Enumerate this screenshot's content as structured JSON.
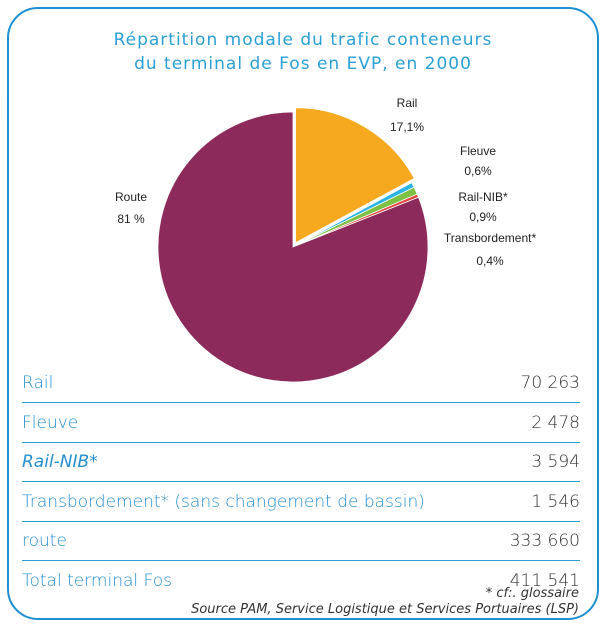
{
  "chart_data": {
    "type": "pie",
    "title": "Répartition modale du trafic conteneurs",
    "subtitle": "du terminal de Fos en EVP, en 2000",
    "categories": [
      "Rail",
      "Fleuve",
      "Rail-NIB*",
      "Transbordement*",
      "Route"
    ],
    "values": [
      17.1,
      0.6,
      0.9,
      0.4,
      81
    ],
    "value_labels": [
      "17,1%",
      "0,6%",
      "0,9%",
      "0,4%",
      "81 %"
    ],
    "colors": [
      "#f6a81e",
      "#2bb3e3",
      "#7cc143",
      "#e2463c",
      "#8c2a5b"
    ]
  },
  "table": {
    "rows": [
      [
        "Rail",
        "70 263"
      ],
      [
        "Fleuve",
        "2 478"
      ],
      [
        "Rail-NIB*",
        "3 594"
      ],
      [
        "Transbordement* (sans changement de bassin)",
        "1 546"
      ],
      [
        "route",
        "333 660"
      ],
      [
        "Total terminal Fos",
        "411 541"
      ]
    ],
    "footnote": "* cf:. glossaire",
    "source": "Source PAM, Service Logistique et Services Portuaires (LSP)"
  }
}
